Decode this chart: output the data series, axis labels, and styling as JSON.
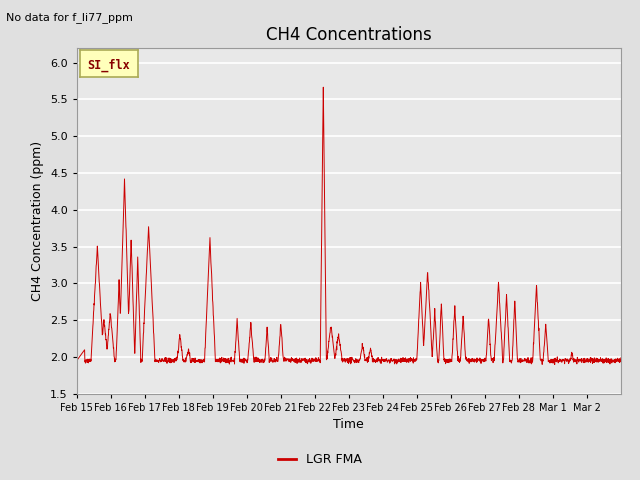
{
  "title": "CH4 Concentrations",
  "xlabel": "Time",
  "ylabel": "CH4 Concentration (ppm)",
  "top_left_text": "No data for f_li77_ppm",
  "legend_label": "LGR FMA",
  "tab_label": "SI_flx",
  "line_color": "#cc0000",
  "ylim": [
    1.5,
    6.2
  ],
  "yticks": [
    1.5,
    2.0,
    2.5,
    3.0,
    3.5,
    4.0,
    4.5,
    5.0,
    5.5,
    6.0
  ],
  "x_tick_labels": [
    "Feb 15",
    "Feb 16",
    "Feb 17",
    "Feb 18",
    "Feb 19",
    "Feb 20",
    "Feb 21",
    "Feb 22",
    "Feb 23",
    "Feb 24",
    "Feb 25",
    "Feb 26",
    "Feb 27",
    "Feb 28",
    "Mar 1",
    "Mar 2"
  ],
  "bg_color": "#e0e0e0",
  "plot_bg_color": "#e8e8e8",
  "grid_color": "#ffffff",
  "tab_bg": "#ffffbb",
  "tab_border": "#aaaa55",
  "tab_text_color": "#880000",
  "title_fontsize": 12,
  "label_fontsize": 9,
  "tick_fontsize": 8,
  "legend_fontsize": 9
}
